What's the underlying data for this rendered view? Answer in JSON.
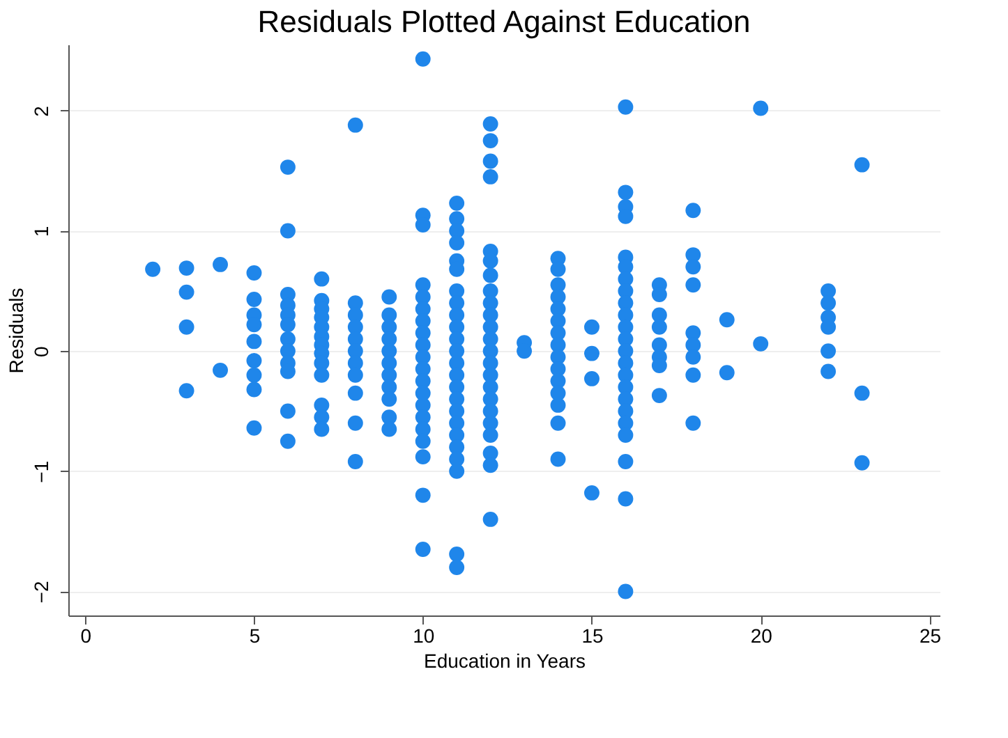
{
  "chart_data": {
    "type": "scatter",
    "title": "Residuals Plotted Against Education",
    "xlabel": "Education in Years",
    "ylabel": "Residuals",
    "xlim": [
      -0.5,
      25.3
    ],
    "xticks": [
      0,
      5,
      10,
      15,
      20,
      25
    ],
    "ylim": [
      -2.2,
      2.55
    ],
    "yticks": [
      -2,
      -1,
      0,
      1,
      2
    ],
    "grid": "y",
    "legend": false,
    "marker": "circle",
    "series": [
      {
        "color": "#1f86ea",
        "x": [
          2
        ],
        "values": [
          0.68
        ]
      },
      {
        "color": "#1f86ea",
        "x": [
          3,
          3,
          3,
          3
        ],
        "values": [
          0.69,
          0.49,
          0.2,
          -0.33
        ]
      },
      {
        "color": "#1f86ea",
        "x": [
          4,
          4
        ],
        "values": [
          0.72,
          -0.16
        ]
      },
      {
        "color": "#1f86ea",
        "x": [
          5,
          5,
          5,
          5,
          5,
          5,
          5,
          5,
          5
        ],
        "values": [
          0.65,
          0.43,
          0.3,
          0.22,
          0.08,
          -0.08,
          -0.2,
          -0.32,
          -0.64
        ]
      },
      {
        "color": "#1f86ea",
        "x": [
          6,
          6,
          6,
          6,
          6,
          6,
          6,
          6,
          6,
          6,
          6,
          6
        ],
        "values": [
          1.53,
          1.0,
          0.47,
          0.38,
          0.3,
          0.22,
          0.1,
          0.0,
          -0.1,
          -0.17,
          -0.5,
          -0.75
        ]
      },
      {
        "color": "#1f86ea",
        "x": [
          7,
          7,
          7,
          7,
          7,
          7,
          7,
          7,
          7,
          7,
          7,
          7,
          7
        ],
        "values": [
          0.6,
          0.42,
          0.35,
          0.28,
          0.2,
          0.12,
          0.05,
          -0.02,
          -0.1,
          -0.2,
          -0.45,
          -0.55,
          -0.65
        ]
      },
      {
        "color": "#1f86ea",
        "x": [
          8,
          8,
          8,
          8,
          8,
          8,
          8,
          8,
          8,
          8,
          8
        ],
        "values": [
          1.88,
          0.4,
          0.3,
          0.2,
          0.1,
          0.0,
          -0.1,
          -0.2,
          -0.35,
          -0.6,
          -0.92
        ]
      },
      {
        "color": "#1f86ea",
        "x": [
          9,
          9,
          9,
          9,
          9,
          9,
          9,
          9,
          9,
          9,
          9
        ],
        "values": [
          0.45,
          0.3,
          0.2,
          0.1,
          0.0,
          -0.1,
          -0.2,
          -0.3,
          -0.4,
          -0.55,
          -0.65
        ]
      },
      {
        "color": "#1f86ea",
        "x": [
          10,
          10,
          10,
          10,
          10,
          10,
          10,
          10,
          10,
          10,
          10,
          10,
          10,
          10,
          10,
          10,
          10,
          10,
          10,
          10
        ],
        "values": [
          2.43,
          1.13,
          1.05,
          0.55,
          0.45,
          0.35,
          0.25,
          0.15,
          0.05,
          -0.05,
          -0.15,
          -0.25,
          -0.35,
          -0.45,
          -0.55,
          -0.65,
          -0.75,
          -0.88,
          -1.2,
          -1.65
        ]
      },
      {
        "color": "#1f86ea",
        "x": [
          11,
          11,
          11,
          11,
          11,
          11,
          11,
          11,
          11,
          11,
          11,
          11,
          11,
          11,
          11,
          11,
          11,
          11,
          11,
          11,
          11,
          11,
          11,
          11
        ],
        "values": [
          1.23,
          1.1,
          1.0,
          0.9,
          0.75,
          0.68,
          0.5,
          0.4,
          0.3,
          0.2,
          0.1,
          0.0,
          -0.1,
          -0.2,
          -0.3,
          -0.4,
          -0.5,
          -0.6,
          -0.7,
          -0.8,
          -0.9,
          -1.0,
          -1.69,
          -1.8
        ]
      },
      {
        "color": "#1f86ea",
        "x": [
          12,
          12,
          12,
          12,
          12,
          12,
          12,
          12,
          12,
          12,
          12,
          12,
          12,
          12,
          12,
          12,
          12,
          12,
          12,
          12,
          12,
          12,
          12
        ],
        "values": [
          1.89,
          1.75,
          1.58,
          1.45,
          0.83,
          0.75,
          0.63,
          0.5,
          0.4,
          0.3,
          0.2,
          0.1,
          0.0,
          -0.1,
          -0.2,
          -0.3,
          -0.4,
          -0.5,
          -0.6,
          -0.7,
          -0.85,
          -0.95,
          -1.4
        ]
      },
      {
        "color": "#1f86ea",
        "x": [
          13,
          13
        ],
        "values": [
          0.07,
          0.0
        ]
      },
      {
        "color": "#1f86ea",
        "x": [
          14,
          14,
          14,
          14,
          14,
          14,
          14,
          14,
          14,
          14,
          14,
          14,
          14,
          14,
          14
        ],
        "values": [
          0.77,
          0.68,
          0.55,
          0.45,
          0.35,
          0.25,
          0.15,
          0.05,
          -0.05,
          -0.15,
          -0.25,
          -0.35,
          -0.45,
          -0.6,
          -0.9
        ]
      },
      {
        "color": "#1f86ea",
        "x": [
          15,
          15,
          15,
          15
        ],
        "values": [
          0.2,
          -0.02,
          -0.23,
          -1.18
        ]
      },
      {
        "color": "#1f86ea",
        "x": [
          16,
          16,
          16,
          16,
          16,
          16,
          16,
          16,
          16,
          16,
          16,
          16,
          16,
          16,
          16,
          16,
          16,
          16,
          16,
          16,
          16,
          16,
          16
        ],
        "values": [
          2.03,
          1.32,
          1.2,
          1.12,
          0.78,
          0.7,
          0.6,
          0.5,
          0.4,
          0.3,
          0.2,
          0.1,
          0.0,
          -0.1,
          -0.2,
          -0.3,
          -0.4,
          -0.5,
          -0.6,
          -0.7,
          -0.92,
          -1.23,
          -2.0
        ]
      },
      {
        "color": "#1f86ea",
        "x": [
          17,
          17,
          17,
          17,
          17,
          17,
          17,
          17
        ],
        "values": [
          0.55,
          0.47,
          0.3,
          0.2,
          0.05,
          -0.05,
          -0.12,
          -0.37
        ]
      },
      {
        "color": "#1f86ea",
        "x": [
          18,
          18,
          18,
          18,
          18,
          18,
          18,
          18,
          18
        ],
        "values": [
          1.17,
          0.8,
          0.7,
          0.55,
          0.15,
          0.05,
          -0.05,
          -0.2,
          -0.6
        ]
      },
      {
        "color": "#1f86ea",
        "x": [
          19,
          19
        ],
        "values": [
          0.26,
          -0.18
        ]
      },
      {
        "color": "#1f86ea",
        "x": [
          20,
          20
        ],
        "values": [
          2.02,
          0.06
        ]
      },
      {
        "color": "#1f86ea",
        "x": [
          22,
          22,
          22,
          22,
          22,
          22
        ],
        "values": [
          0.5,
          0.4,
          0.28,
          0.2,
          0.0,
          -0.17
        ]
      },
      {
        "color": "#1f86ea",
        "x": [
          23,
          23,
          23
        ],
        "values": [
          1.55,
          -0.35,
          -0.93
        ]
      }
    ]
  }
}
